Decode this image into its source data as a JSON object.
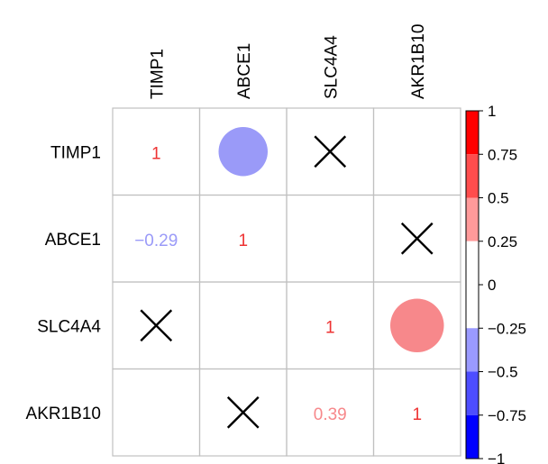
{
  "chart_data": {
    "type": "heatmap",
    "variables": [
      "TIMP1",
      "ABCE1",
      "SLC4A4",
      "AKR1B10"
    ],
    "cells": [
      {
        "row": 0,
        "col": 0,
        "value": 1,
        "mode": "number"
      },
      {
        "row": 0,
        "col": 1,
        "value": -0.29,
        "mode": "circle"
      },
      {
        "row": 0,
        "col": 2,
        "value": null,
        "mode": "cross"
      },
      {
        "row": 0,
        "col": 3,
        "value": null,
        "mode": "blank"
      },
      {
        "row": 1,
        "col": 0,
        "value": -0.29,
        "mode": "number",
        "label": "−0.29"
      },
      {
        "row": 1,
        "col": 1,
        "value": 1,
        "mode": "number"
      },
      {
        "row": 1,
        "col": 2,
        "value": null,
        "mode": "blank"
      },
      {
        "row": 1,
        "col": 3,
        "value": null,
        "mode": "cross"
      },
      {
        "row": 2,
        "col": 0,
        "value": null,
        "mode": "cross"
      },
      {
        "row": 2,
        "col": 1,
        "value": null,
        "mode": "blank"
      },
      {
        "row": 2,
        "col": 2,
        "value": 1,
        "mode": "number"
      },
      {
        "row": 2,
        "col": 3,
        "value": 0.39,
        "mode": "circle"
      },
      {
        "row": 3,
        "col": 0,
        "value": null,
        "mode": "blank"
      },
      {
        "row": 3,
        "col": 1,
        "value": null,
        "mode": "cross"
      },
      {
        "row": 3,
        "col": 2,
        "value": 0.39,
        "mode": "number"
      },
      {
        "row": 3,
        "col": 3,
        "value": 1,
        "mode": "number"
      }
    ],
    "colorbar": {
      "range": [
        -1,
        1
      ],
      "ticks": [
        1,
        0.75,
        0.5,
        0.25,
        0,
        -0.25,
        -0.5,
        -0.75,
        -1
      ],
      "tick_labels": [
        "1",
        "0.75",
        "0.5",
        "0.25",
        "0",
        "−0.25",
        "−0.5",
        "−0.75",
        "−1"
      ],
      "bands": [
        {
          "from": 0.75,
          "to": 1,
          "color": "#ff0000"
        },
        {
          "from": 0.5,
          "to": 0.75,
          "color": "#ff4d4d"
        },
        {
          "from": 0.25,
          "to": 0.5,
          "color": "#ff9a9a"
        },
        {
          "from": -0.25,
          "to": 0.25,
          "color": "#ffffff"
        },
        {
          "from": -0.5,
          "to": -0.25,
          "color": "#9a9aff"
        },
        {
          "from": -0.75,
          "to": -0.5,
          "color": "#4d4dff"
        },
        {
          "from": -1,
          "to": -0.75,
          "color": "#0000ff"
        }
      ]
    },
    "colors": {
      "positive_text": "#ee3333",
      "positive_circle": "#f7888b",
      "negative": "#9a9af8",
      "grid": "#c0c0c0",
      "cross": "#000000"
    }
  }
}
